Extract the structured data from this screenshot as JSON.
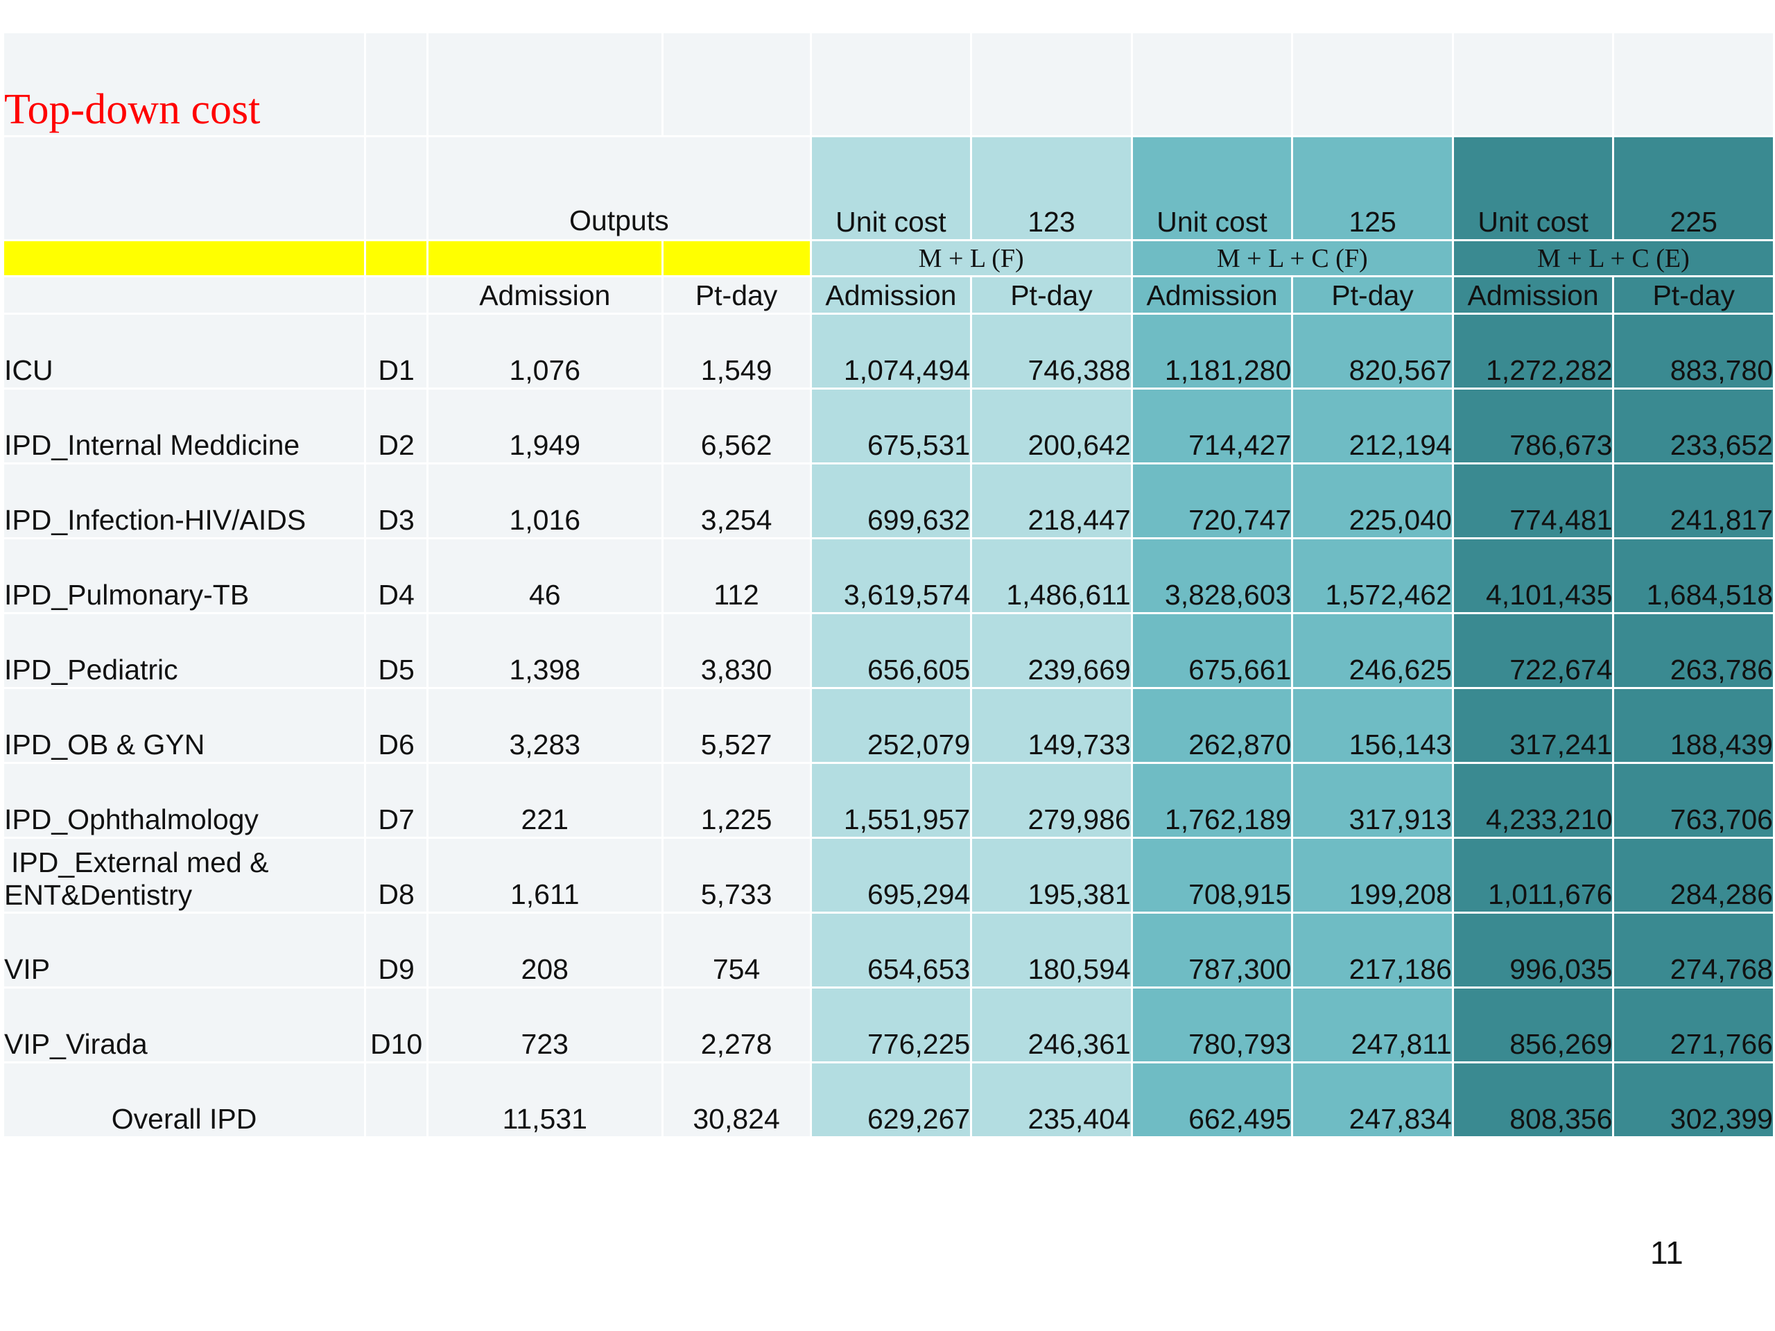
{
  "slide": {
    "title": "Top-down cost",
    "page_number": "11"
  },
  "colors": {
    "title": "#ff0000",
    "highlight_yellow": "#ffff00",
    "teal_light": "#b3dde1",
    "teal_medium": "#6fbcc4",
    "teal_dark": "#3a8a91",
    "row_background": "#f2f5f7"
  },
  "header": {
    "outputs_label": "Outputs",
    "groups": [
      {
        "unit_cost_label": "Unit cost",
        "code": "123",
        "formula": "M + L (F)"
      },
      {
        "unit_cost_label": "Unit cost",
        "code": "125",
        "formula": "M + L + C (F)"
      },
      {
        "unit_cost_label": "Unit cost",
        "code": "225",
        "formula": "M + L + C (E)"
      }
    ],
    "subheaders": [
      "Admission",
      "Pt-day",
      "Admission",
      "Pt-day",
      "Admission",
      "Pt-day",
      "Admission",
      "Pt-day"
    ]
  },
  "rows": [
    {
      "name": "ICU",
      "code": "D1",
      "values": [
        "1,076",
        "1,549",
        "1,074,494",
        "746,388",
        "1,181,280",
        "820,567",
        "1,272,282",
        "883,780"
      ]
    },
    {
      "name": "IPD_Internal Meddicine",
      "code": "D2",
      "values": [
        "1,949",
        "6,562",
        "675,531",
        "200,642",
        "714,427",
        "212,194",
        "786,673",
        "233,652"
      ]
    },
    {
      "name": "IPD_Infection-HIV/AIDS",
      "code": "D3",
      "values": [
        "1,016",
        "3,254",
        "699,632",
        "218,447",
        "720,747",
        "225,040",
        "774,481",
        "241,817"
      ]
    },
    {
      "name": "IPD_Pulmonary-TB",
      "code": "D4",
      "values": [
        "46",
        "112",
        "3,619,574",
        "1,486,611",
        "3,828,603",
        "1,572,462",
        "4,101,435",
        "1,684,518"
      ]
    },
    {
      "name": "IPD_Pediatric",
      "code": "D5",
      "values": [
        "1,398",
        "3,830",
        "656,605",
        "239,669",
        "675,661",
        "246,625",
        "722,674",
        "263,786"
      ]
    },
    {
      "name": "IPD_OB & GYN",
      "code": "D6",
      "values": [
        "3,283",
        "5,527",
        "252,079",
        "149,733",
        "262,870",
        "156,143",
        "317,241",
        "188,439"
      ]
    },
    {
      "name": "IPD_Ophthalmology",
      "code": "D7",
      "values": [
        "221",
        "1,225",
        "1,551,957",
        "279,986",
        "1,762,189",
        "317,913",
        "4,233,210",
        "763,706"
      ]
    },
    {
      "name_line1": "IPD_External med &",
      "name_line2": "ENT&Dentistry",
      "code": "D8",
      "values": [
        "1,611",
        "5,733",
        "695,294",
        "195,381",
        "708,915",
        "199,208",
        "1,011,676",
        "284,286"
      ]
    },
    {
      "name": "VIP",
      "code": "D9",
      "values": [
        "208",
        "754",
        "654,653",
        "180,594",
        "787,300",
        "217,186",
        "996,035",
        "274,768"
      ]
    },
    {
      "name": "VIP_Virada",
      "code": "D10",
      "values": [
        "723",
        "2,278",
        "776,225",
        "246,361",
        "780,793",
        "247,811",
        "856,269",
        "271,766"
      ]
    },
    {
      "name": "Overall IPD",
      "code": "",
      "values": [
        "11,531",
        "30,824",
        "629,267",
        "235,404",
        "662,495",
        "247,834",
        "808,356",
        "302,399"
      ]
    }
  ]
}
